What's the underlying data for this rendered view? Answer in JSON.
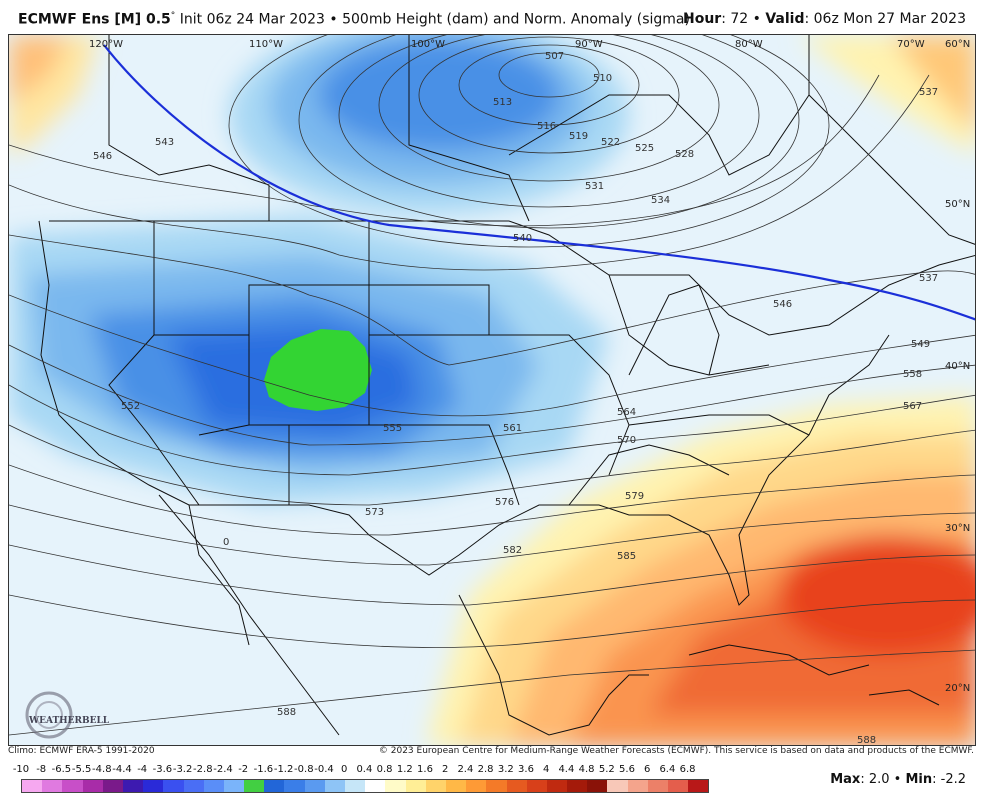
{
  "header": {
    "model": "ECMWF Ens [M] 0.5",
    "deg": "°",
    "init": " Init 06z 24 Mar 2023 • 500mb Height (dam) and Norm. Anomaly (sigma)",
    "hour_label": "Hour",
    "hour_value": ": 72 • ",
    "valid_label": "Valid",
    "valid_value": ": 06z Mon 27 Mar 2023"
  },
  "map": {
    "lon_labels": [
      "120°W",
      "110°W",
      "100°W",
      "90°W",
      "80°W",
      "70°W",
      "60°N"
    ],
    "lat_labels": [
      "50°N",
      "40°N",
      "30°N",
      "20°N"
    ],
    "corner_lat": "60°N",
    "contour_labels": [
      "507",
      "510",
      "513",
      "516",
      "519",
      "522",
      "525",
      "528",
      "531",
      "534",
      "537",
      "537",
      "540",
      "543",
      "546",
      "546",
      "549",
      "552",
      "555",
      "558",
      "561",
      "564",
      "567",
      "570",
      "573",
      "576",
      "579",
      "582",
      "585",
      "588",
      "588",
      "0"
    ],
    "logo_text": "WEATHERBELL"
  },
  "footer": {
    "climo": "Climo: ECMWF ERA-5 1991-2020",
    "copyright": "© 2023 European Centre for Medium-Range Weather Forecasts (ECMWF). This service is based on data and products of the ECMWF."
  },
  "scale": {
    "labels": [
      "-10",
      "-8",
      "-6.5",
      "-5.5",
      "-4.8",
      "-4.4",
      "-4",
      "-3.6",
      "-3.2",
      "-2.8",
      "-2.4",
      "-2",
      "-1.6",
      "-1.2",
      "-0.8",
      "-0.4",
      "0",
      "0.4",
      "0.8",
      "1.2",
      "1.6",
      "2",
      "2.4",
      "2.8",
      "3.2",
      "3.6",
      "4",
      "4.4",
      "4.8",
      "5.2",
      "5.6",
      "6",
      "6.4",
      "6.8"
    ],
    "colors": [
      "#f6a8f0",
      "#e07ae0",
      "#c84fc8",
      "#a82ca8",
      "#7a1a8a",
      "#3d1ab0",
      "#2a2ad8",
      "#3a50f0",
      "#4a6ef5",
      "#5a8ef8",
      "#7ab4fa",
      "#42cf42",
      "#2266d8",
      "#3a7ee8",
      "#5a9af0",
      "#8ec4f6",
      "#c6e6f8",
      "#ffffff",
      "#fffbc8",
      "#ffee96",
      "#ffd36a",
      "#ffb847",
      "#fe9a36",
      "#f47a28",
      "#e65a20",
      "#d8401a",
      "#c02a10",
      "#a41a0a",
      "#8a1208",
      "#f8c8b8",
      "#f4a48c",
      "#ec8068",
      "#e45e4c",
      "#b81818"
    ],
    "max_label": "Max",
    "max_value": ": 2.0 • ",
    "min_label": "Min",
    "min_value": ": -2.2"
  }
}
